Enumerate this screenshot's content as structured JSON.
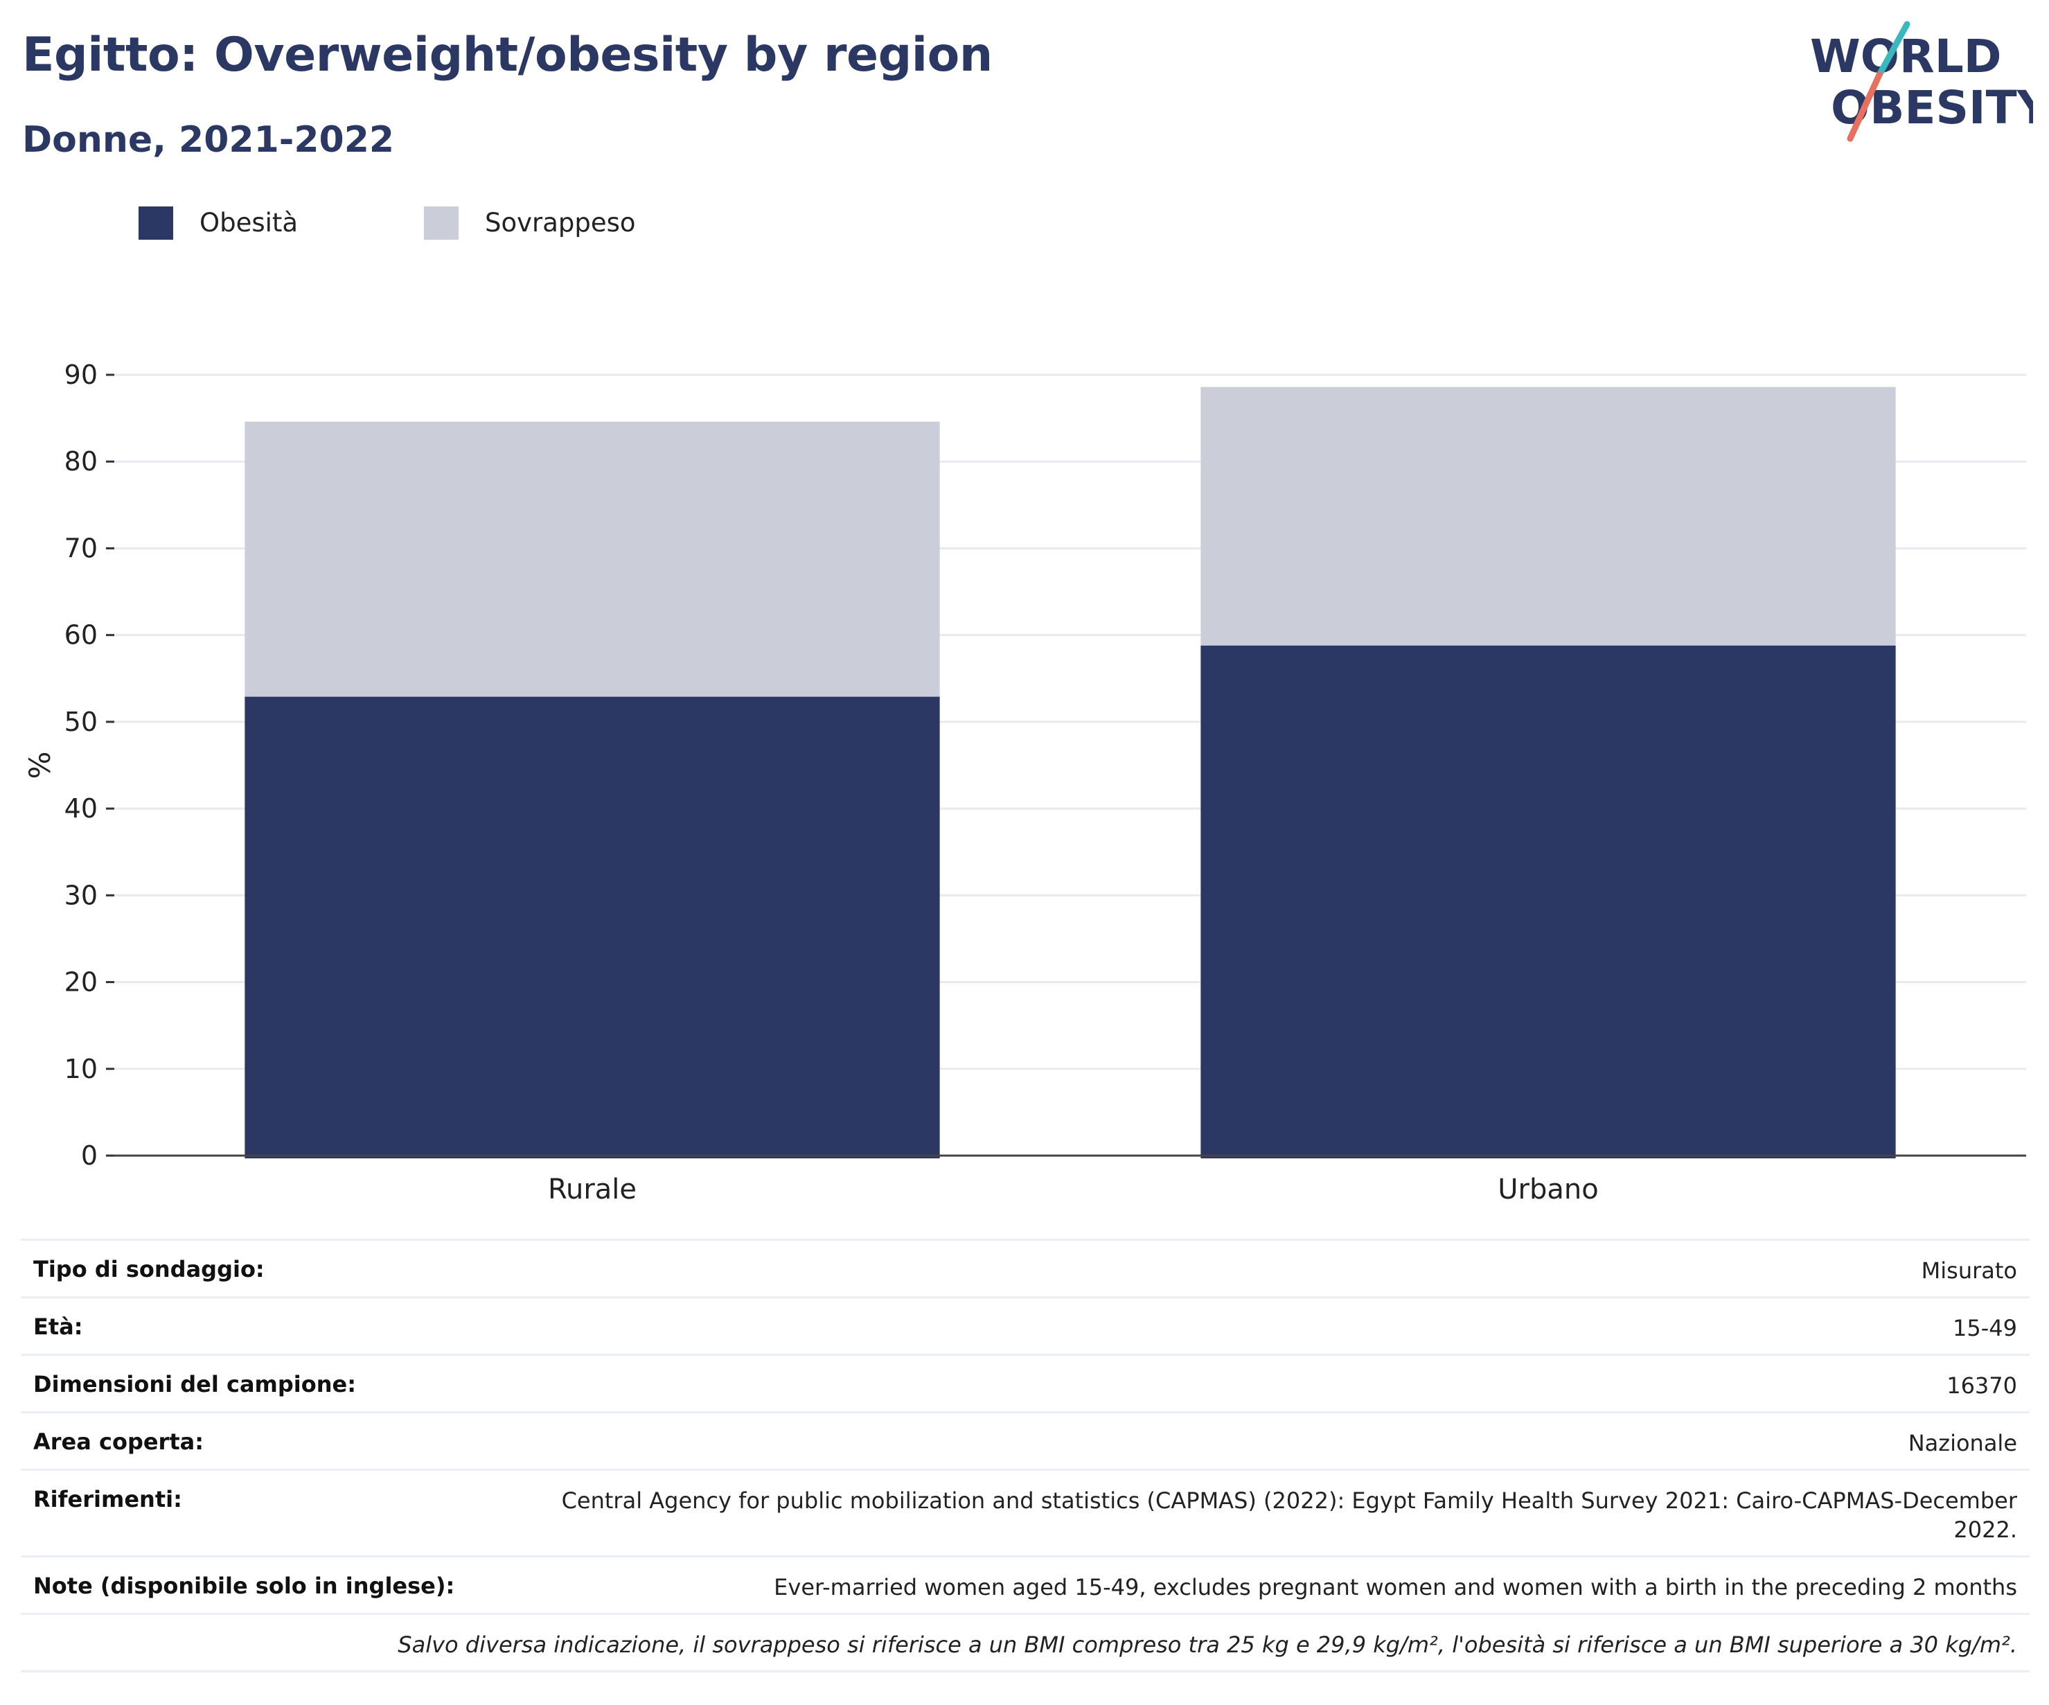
{
  "header": {
    "title": "Egitto: Overweight/obesity by region",
    "subtitle": "Donne, 2021-2022"
  },
  "logo": {
    "line1": "WORLD",
    "line2": "OBESITY",
    "icon": "world-obesity-logo",
    "colors": {
      "text": "#2b3864",
      "slash_top": "#3ab7bf",
      "slash_bottom": "#e8705f"
    }
  },
  "legend": [
    {
      "label": "Obesità",
      "color": "#2b3864"
    },
    {
      "label": "Sovrappeso",
      "color": "#cbcdd8"
    }
  ],
  "chart_data": {
    "type": "bar",
    "stacked": true,
    "categories": [
      "Rurale",
      "Urbano"
    ],
    "series": [
      {
        "name": "Obesità",
        "values": [
          52.9,
          58.8
        ],
        "color": "#2b3864"
      },
      {
        "name": "Sovrappeso",
        "values": [
          31.7,
          29.8
        ],
        "color": "#cbcdd8"
      }
    ],
    "ylabel": "%",
    "xlabel": "",
    "ylim": [
      0,
      90
    ],
    "yticks": [
      0,
      10,
      20,
      30,
      40,
      50,
      60,
      70,
      80,
      90
    ],
    "grid": true,
    "legend_position": "top-left"
  },
  "info": [
    {
      "key": "Tipo di sondaggio:",
      "value": "Misurato"
    },
    {
      "key": "Età:",
      "value": "15-49"
    },
    {
      "key": "Dimensioni del campione:",
      "value": "16370"
    },
    {
      "key": "Area coperta:",
      "value": "Nazionale"
    },
    {
      "key": "Riferimenti:",
      "value": "Central Agency for public mobilization and statistics (CAPMAS) (2022): Egypt Family Health Survey 2021: Cairo-CAPMAS-December 2022."
    },
    {
      "key": "Note (disponibile solo in inglese):",
      "value": "Ever-married women aged 15-49, excludes pregnant women and women with a birth in the preceding 2 months"
    }
  ],
  "footnote": "Salvo diversa indicazione, il sovrappeso si riferisce a un BMI compreso tra 25 kg e 29,9 kg/m², l'obesità si riferisce a un BMI superiore a 30 kg/m²."
}
